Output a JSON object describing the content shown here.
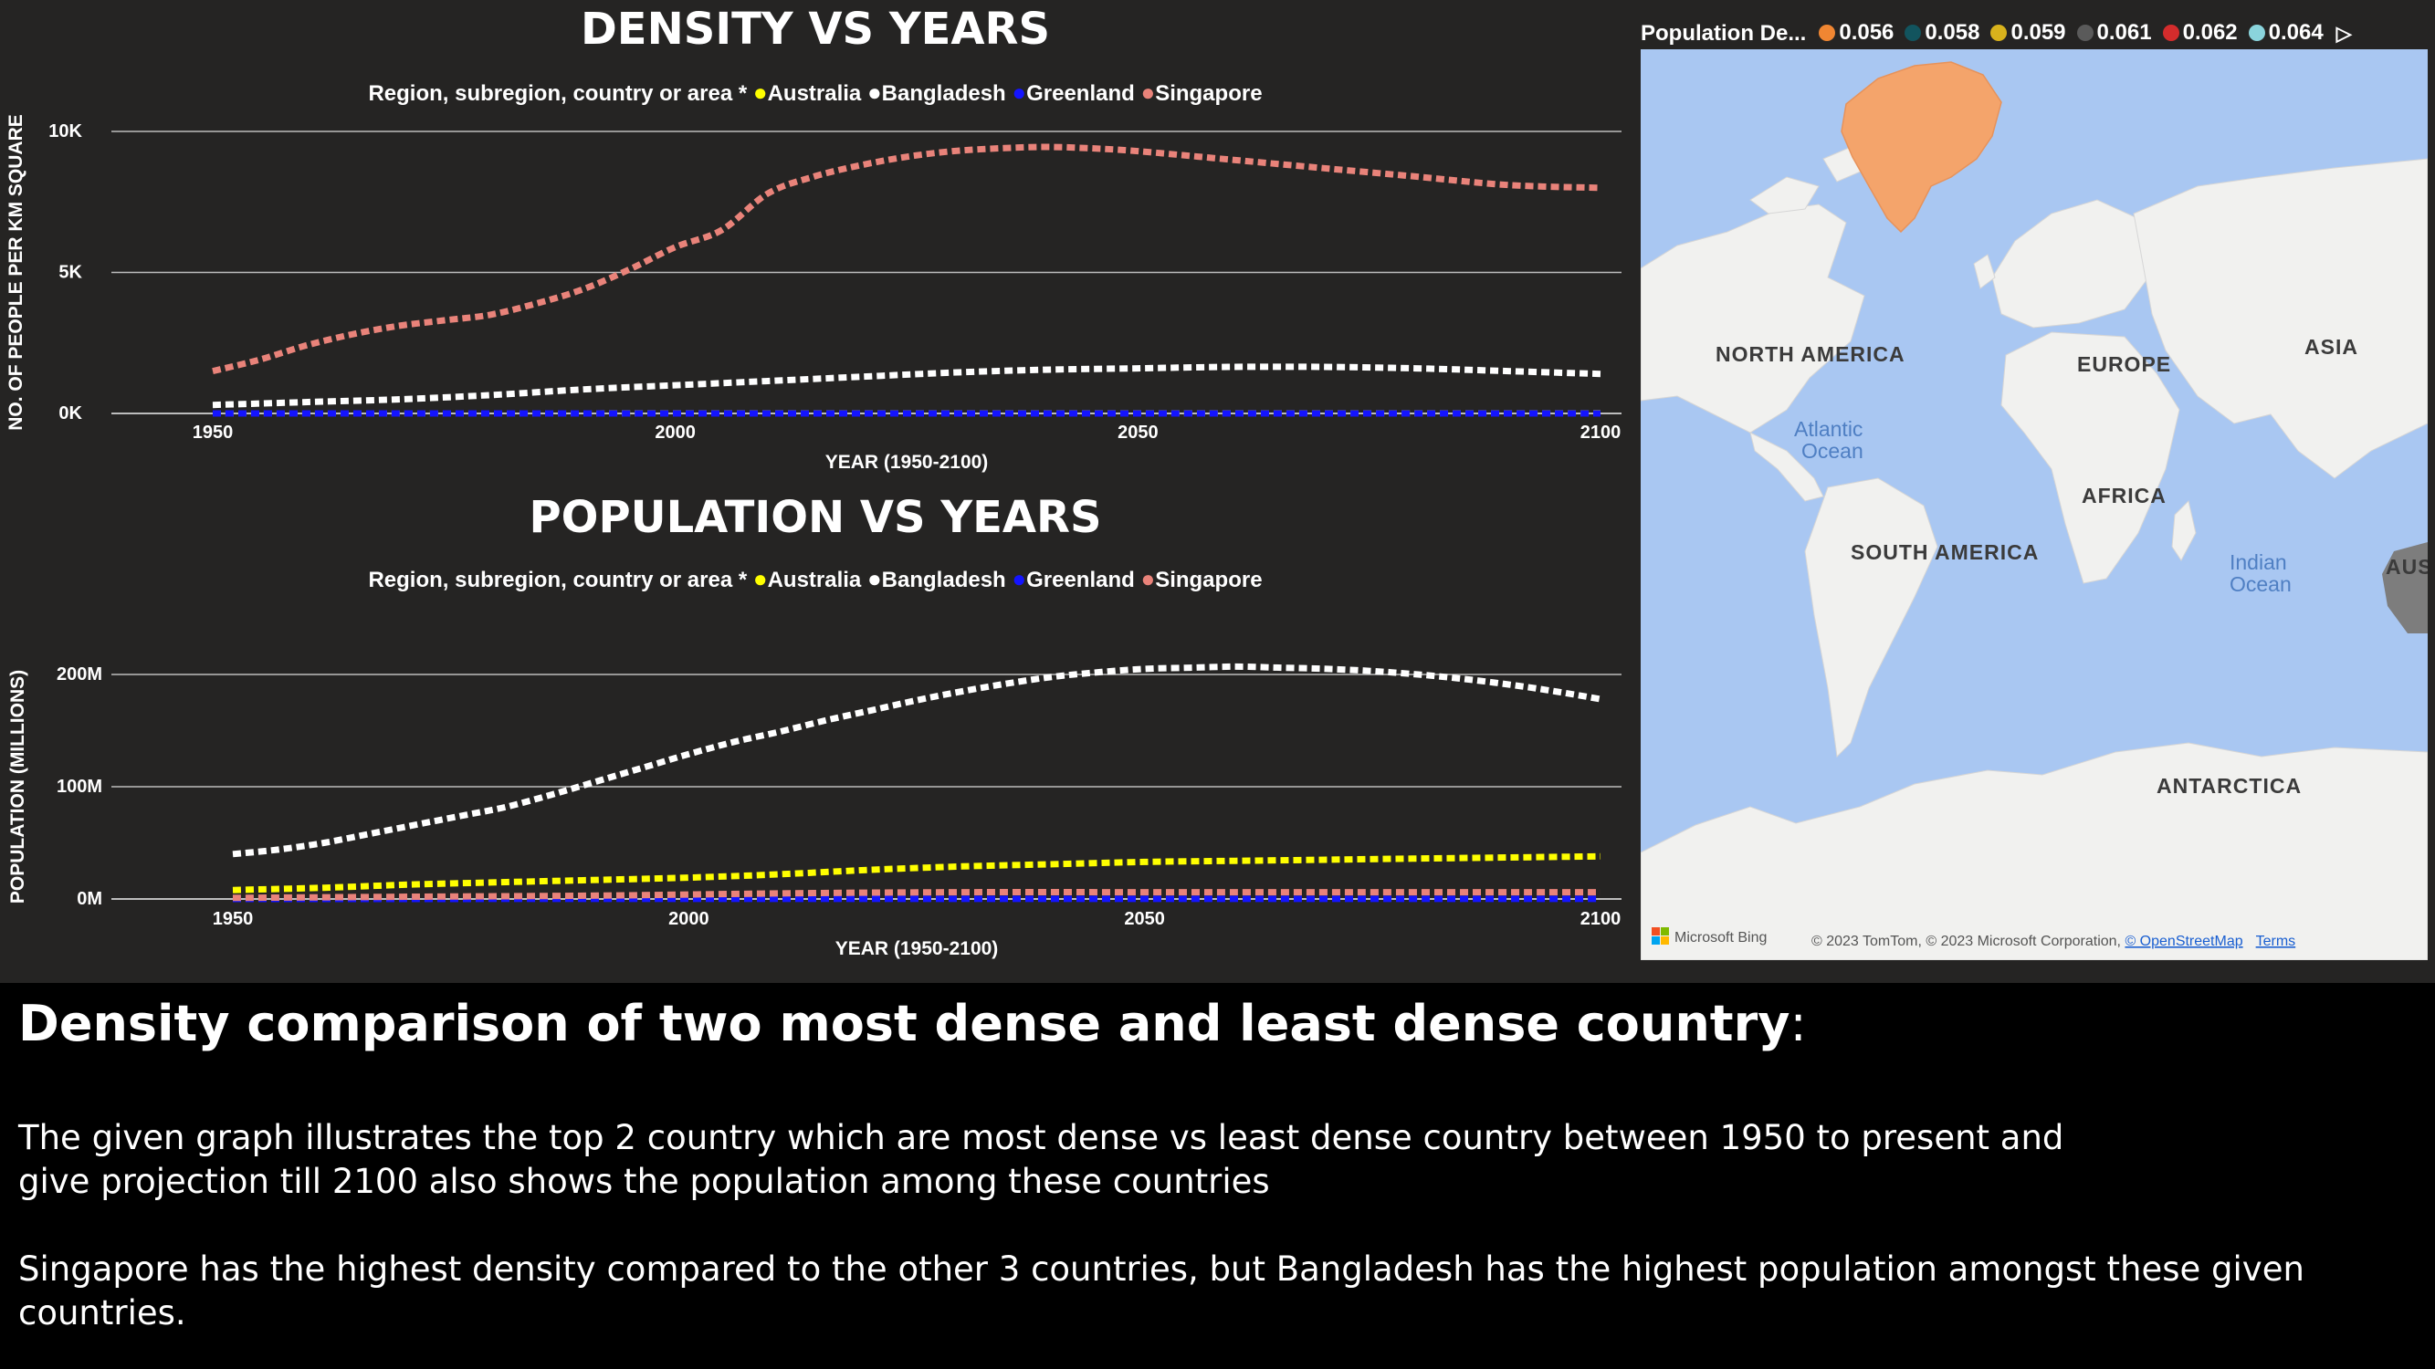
{
  "legend_series_title": "Region, subregion, country or area *",
  "colors": {
    "Australia": "#ffff00",
    "Bangladesh": "#ffffff",
    "Greenland": "#1414ff",
    "Singapore": "#e9837a",
    "background": "#252423",
    "gridline": "#bdbdbd"
  },
  "chart_data": [
    {
      "type": "line",
      "title": "DENSITY VS YEARS",
      "xlabel": "YEAR (1950-2100)",
      "ylabel": "NO. OF PEOPLE PER KM SQUARE",
      "xlim": [
        1950,
        2100
      ],
      "ylim": [
        0,
        10000
      ],
      "x_ticks": [
        1950,
        2000,
        2050,
        2100
      ],
      "y_ticks": [
        0,
        5000,
        10000
      ],
      "y_tick_labels": [
        "0K",
        "5K",
        "10K"
      ],
      "legend_position": "top-center",
      "grid": true,
      "series": [
        {
          "name": "Australia",
          "x": [
            1950,
            2000,
            2050,
            2100
          ],
          "y": [
            1,
            2,
            4,
            5
          ]
        },
        {
          "name": "Bangladesh",
          "x": [
            1950,
            1960,
            1970,
            1980,
            1990,
            2000,
            2010,
            2020,
            2030,
            2040,
            2050,
            2060,
            2070,
            2080,
            2090,
            2100
          ],
          "y": [
            300,
            400,
            500,
            650,
            850,
            1000,
            1150,
            1300,
            1450,
            1550,
            1600,
            1650,
            1650,
            1600,
            1500,
            1400
          ]
        },
        {
          "name": "Greenland",
          "x": [
            1950,
            2000,
            2050,
            2100
          ],
          "y": [
            0.1,
            0.1,
            0.1,
            0.1
          ]
        },
        {
          "name": "Singapore",
          "x": [
            1950,
            1955,
            1960,
            1965,
            1970,
            1975,
            1980,
            1985,
            1990,
            1995,
            2000,
            2005,
            2010,
            2015,
            2020,
            2025,
            2030,
            2035,
            2040,
            2045,
            2050,
            2060,
            2070,
            2080,
            2090,
            2100
          ],
          "y": [
            1500,
            1900,
            2400,
            2800,
            3100,
            3300,
            3500,
            3900,
            4400,
            5100,
            5900,
            6500,
            7800,
            8400,
            8800,
            9100,
            9300,
            9400,
            9450,
            9400,
            9300,
            9000,
            8700,
            8400,
            8100,
            8000
          ]
        }
      ]
    },
    {
      "type": "line",
      "title": "POPULATION VS YEARS",
      "xlabel": "YEAR (1950-2100)",
      "ylabel": "POPULATION (MILLIONS)",
      "xlim": [
        1950,
        2100
      ],
      "ylim": [
        0,
        200
      ],
      "x_ticks": [
        1950,
        2000,
        2050,
        2100
      ],
      "y_ticks": [
        0,
        100,
        200
      ],
      "y_tick_labels": [
        "0M",
        "100M",
        "200M"
      ],
      "legend_position": "top-center",
      "grid": true,
      "series": [
        {
          "name": "Australia",
          "x": [
            1950,
            1960,
            1970,
            1980,
            1990,
            2000,
            2010,
            2020,
            2030,
            2040,
            2050,
            2060,
            2070,
            2080,
            2090,
            2100
          ],
          "y": [
            8,
            10,
            13,
            15,
            17,
            19,
            22,
            26,
            29,
            31,
            33,
            34,
            35,
            36,
            37,
            38
          ]
        },
        {
          "name": "Bangladesh",
          "x": [
            1950,
            1955,
            1960,
            1965,
            1970,
            1975,
            1980,
            1985,
            1990,
            1995,
            2000,
            2005,
            2010,
            2015,
            2020,
            2025,
            2030,
            2035,
            2040,
            2045,
            2050,
            2055,
            2060,
            2065,
            2070,
            2075,
            2080,
            2085,
            2090,
            2095,
            2100
          ],
          "y": [
            40,
            44,
            50,
            58,
            66,
            74,
            82,
            93,
            105,
            117,
            129,
            140,
            149,
            159,
            168,
            177,
            185,
            192,
            198,
            202,
            205,
            206,
            207,
            206,
            205,
            203,
            200,
            196,
            191,
            185,
            178
          ]
        },
        {
          "name": "Greenland",
          "x": [
            1950,
            2000,
            2050,
            2100
          ],
          "y": [
            0.02,
            0.06,
            0.06,
            0.05
          ]
        },
        {
          "name": "Singapore",
          "x": [
            1950,
            1970,
            1990,
            2010,
            2030,
            2050,
            2070,
            2100
          ],
          "y": [
            1,
            2,
            3,
            5,
            6,
            6,
            6,
            6
          ]
        }
      ]
    }
  ],
  "map": {
    "legend_title": "Population De...",
    "legend_items": [
      {
        "label": "0.056",
        "color": "#f08632"
      },
      {
        "label": "0.058",
        "color": "#12545e"
      },
      {
        "label": "0.059",
        "color": "#d8b21c"
      },
      {
        "label": "0.061",
        "color": "#5a5a5a"
      },
      {
        "label": "0.062",
        "color": "#d42c2c"
      },
      {
        "label": "0.064",
        "color": "#8ad4dc"
      }
    ],
    "highlighted_region_color": "#f4a46b",
    "labels": {
      "north_america": "NORTH AMERICA",
      "europe": "EUROPE",
      "asia": "ASIA",
      "atlantic_1": "Atlantic",
      "atlantic_2": "Ocean",
      "africa": "AFRICA",
      "south_america": "SOUTH AMERICA",
      "indian_1": "Indian",
      "indian_2": "Ocean",
      "australia_partial": "AUS",
      "antarctica": "ANTARCTICA"
    },
    "attribution": "© 2023 TomTom, © 2023 Microsoft Corporation, ",
    "osm_link": "© OpenStreetMap",
    "terms_link": "Terms",
    "bing_logo": "Microsoft Bing"
  },
  "caption": {
    "heading": "Density comparison of two most dense and least dense country",
    "heading_suffix": ":",
    "para1_line1": "The given graph illustrates the top 2 country which are most  dense vs least dense country between 1950 to present and",
    "para1_line2": "give projection till 2100 also shows the population among these countries",
    "para2_line1": "Singapore has the highest density compared to the other 3 countries, but Bangladesh has the highest population amongst these given",
    "para2_line2": "countries."
  }
}
